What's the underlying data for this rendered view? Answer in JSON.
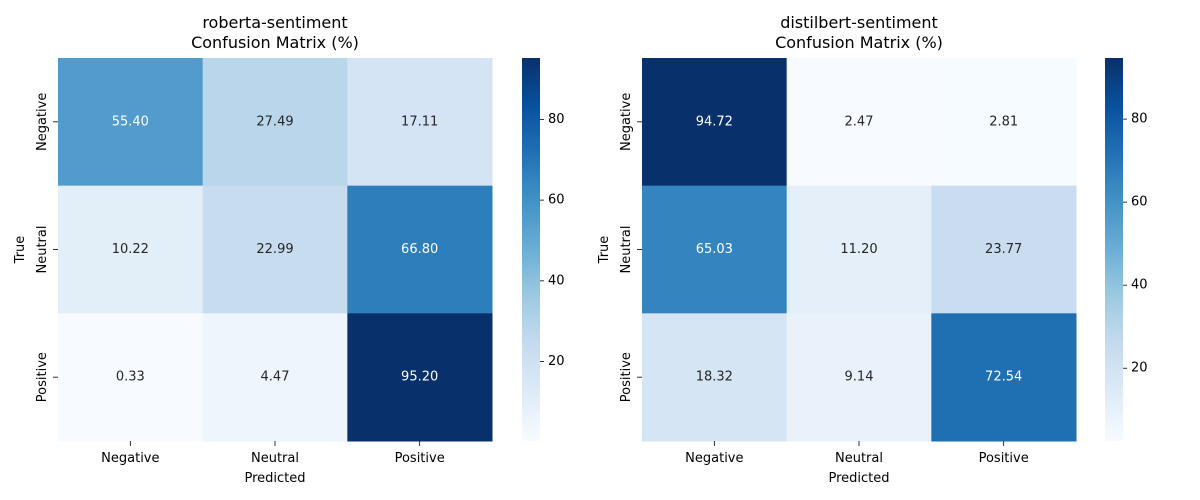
{
  "chart_data": [
    {
      "type": "heatmap",
      "title": "roberta-sentiment\nConfusion Matrix (%)",
      "title_lines": [
        "roberta-sentiment",
        "Confusion Matrix (%)"
      ],
      "xlabel": "Predicted",
      "ylabel": "True",
      "x_categories": [
        "Negative",
        "Neutral",
        "Positive"
      ],
      "y_categories": [
        "Negative",
        "Neutral",
        "Positive"
      ],
      "values": [
        [
          55.4,
          27.49,
          17.11
        ],
        [
          10.22,
          22.99,
          66.8
        ],
        [
          0.33,
          4.47,
          95.2
        ]
      ],
      "value_labels": [
        [
          "55.40",
          "27.49",
          "17.11"
        ],
        [
          "10.22",
          "22.99",
          "66.80"
        ],
        [
          "0.33",
          "4.47",
          "95.20"
        ]
      ],
      "colormap": "Blues",
      "colorbar": {
        "range": [
          0.33,
          95.2
        ],
        "ticks": [
          20,
          40,
          60,
          80
        ],
        "tick_labels": [
          "20",
          "40",
          "60",
          "80"
        ]
      }
    },
    {
      "type": "heatmap",
      "title": "distilbert-sentiment\nConfusion Matrix (%)",
      "title_lines": [
        "distilbert-sentiment",
        "Confusion Matrix (%)"
      ],
      "xlabel": "Predicted",
      "ylabel": "True",
      "x_categories": [
        "Negative",
        "Neutral",
        "Positive"
      ],
      "y_categories": [
        "Negative",
        "Neutral",
        "Positive"
      ],
      "values": [
        [
          94.72,
          2.47,
          2.81
        ],
        [
          65.03,
          11.2,
          23.77
        ],
        [
          18.32,
          9.14,
          72.54
        ]
      ],
      "value_labels": [
        [
          "94.72",
          "2.47",
          "2.81"
        ],
        [
          "65.03",
          "11.20",
          "23.77"
        ],
        [
          "18.32",
          "9.14",
          "72.54"
        ]
      ],
      "colormap": "Blues",
      "colorbar": {
        "range": [
          2.47,
          94.72
        ],
        "ticks": [
          20,
          40,
          60,
          80
        ],
        "tick_labels": [
          "20",
          "40",
          "60",
          "80"
        ]
      }
    }
  ]
}
